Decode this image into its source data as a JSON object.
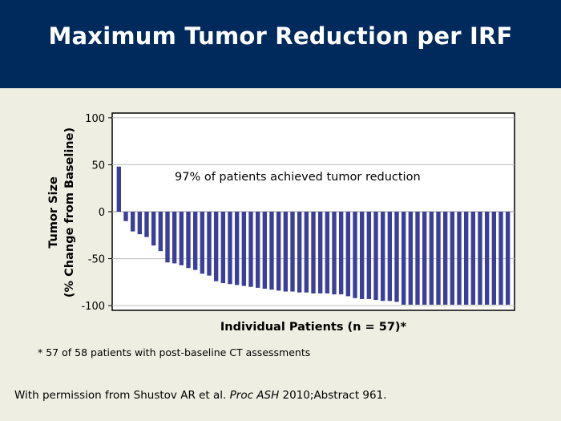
{
  "slide": {
    "title": "Maximum Tumor Reduction per IRF",
    "footnote": "* 57 of 58 patients with post-baseline CT assessments",
    "citation_pre": "With permission from Shustov AR et al. ",
    "citation_journal": "Proc ASH",
    "citation_post": " 2010;Abstract 961."
  },
  "colors": {
    "header": "#002a5c",
    "background": "#efeee2",
    "bar": "#3b3f99"
  },
  "chart_data": {
    "type": "bar",
    "ylabel_line1": "Tumor Size",
    "ylabel_line2": "(% Change from Baseline)",
    "xlabel": "Individual Patients (n = 57)*",
    "annotation": "97% of patients achieved tumor reduction",
    "ylim": [
      -105,
      105
    ],
    "yticks": [
      100,
      50,
      0,
      -50,
      -100
    ],
    "ytick_labels": [
      "100",
      "50",
      "0",
      "-50",
      "-100"
    ],
    "grid": true,
    "n": 57,
    "values": [
      48,
      -10,
      -21,
      -24,
      -27,
      -36,
      -42,
      -54,
      -55,
      -57,
      -60,
      -62,
      -66,
      -68,
      -74,
      -76,
      -77,
      -78,
      -79,
      -80,
      -81,
      -82,
      -83,
      -84,
      -85,
      -85,
      -86,
      -86,
      -87,
      -87,
      -87,
      -88,
      -88,
      -90,
      -92,
      -93,
      -93,
      -94,
      -95,
      -95,
      -96,
      -99,
      -99,
      -99,
      -99,
      -99,
      -99,
      -99,
      -99,
      -99,
      -99,
      -99,
      -99,
      -99,
      -99,
      -99,
      -99
    ]
  }
}
